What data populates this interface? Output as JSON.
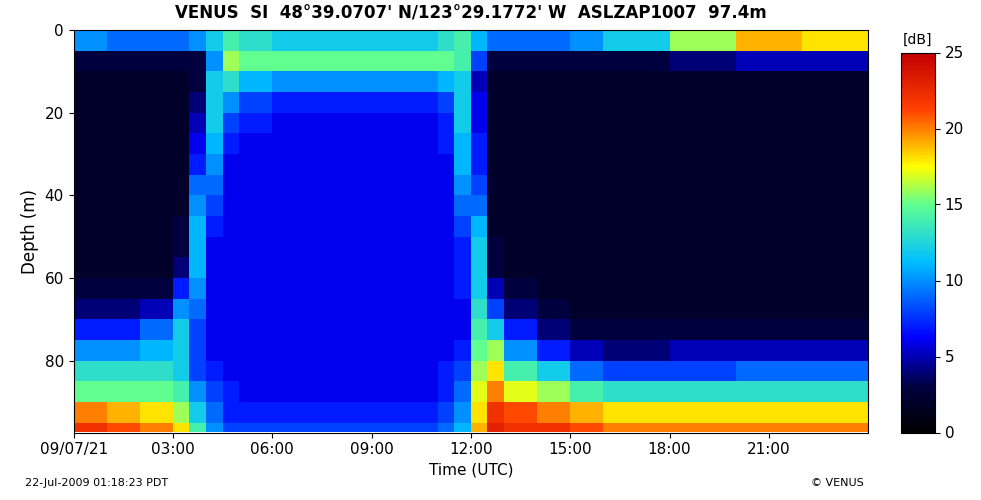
{
  "chart_data": {
    "type": "heatmap",
    "title": "VENUS  SI  48°39.0707' N/123°29.1772' W  ASLZAP1007  97.4m",
    "x_label": "Time (UTC)",
    "y_label": "Depth (m)",
    "annotations": [
      "22-Jul-2009 01:18:23 PDT",
      "© VENUS"
    ],
    "x_edges": [
      0,
      1,
      2,
      3,
      3.5,
      4,
      4.5,
      5,
      6,
      7,
      8,
      9,
      10,
      11,
      11.5,
      12,
      12.5,
      13,
      14,
      15,
      16,
      18,
      20,
      22,
      24
    ],
    "y_edges": [
      0,
      5,
      10,
      15,
      20,
      25,
      30,
      35,
      40,
      45,
      50,
      55,
      60,
      65,
      70,
      75,
      80,
      85,
      90,
      95,
      97.4
    ],
    "cells": [
      [
        10,
        9,
        9,
        9,
        10,
        12,
        14,
        13,
        12,
        12,
        12,
        12,
        12,
        13,
        14,
        11,
        9,
        9,
        9,
        10,
        12,
        16,
        19,
        18
      ],
      [
        3,
        3,
        3,
        3,
        3,
        10,
        16,
        15,
        15,
        15,
        15,
        15,
        15,
        15,
        14,
        8,
        3,
        3,
        3,
        3,
        3,
        4,
        5,
        5
      ],
      [
        2,
        2,
        2,
        2,
        3,
        12,
        13,
        11,
        10,
        10,
        10,
        10,
        10,
        11,
        12,
        5,
        2,
        2,
        2,
        2,
        2,
        2,
        2,
        2
      ],
      [
        2,
        2,
        2,
        2,
        4,
        12,
        10,
        8,
        7,
        7,
        7,
        7,
        7,
        8,
        12,
        6,
        2,
        2,
        2,
        2,
        2,
        2,
        2,
        2
      ],
      [
        2,
        2,
        2,
        2,
        5,
        12,
        8,
        7,
        6,
        6,
        6,
        6,
        6,
        7,
        12,
        6,
        2,
        2,
        2,
        2,
        2,
        2,
        2,
        2
      ],
      [
        2,
        2,
        2,
        2,
        6,
        11,
        7,
        6,
        6,
        6,
        6,
        6,
        6,
        7,
        11,
        7,
        2,
        2,
        2,
        2,
        2,
        2,
        2,
        2
      ],
      [
        2,
        2,
        2,
        2,
        7,
        10,
        6,
        6,
        6,
        6,
        6,
        6,
        6,
        6,
        11,
        7,
        2,
        2,
        2,
        2,
        2,
        2,
        2,
        2
      ],
      [
        2,
        2,
        2,
        2,
        9,
        9,
        6,
        6,
        6,
        6,
        6,
        6,
        6,
        6,
        10,
        8,
        2,
        2,
        2,
        2,
        2,
        2,
        2,
        2
      ],
      [
        2,
        2,
        2,
        2,
        10,
        8,
        6,
        6,
        6,
        6,
        6,
        6,
        6,
        6,
        9,
        9,
        2,
        2,
        2,
        2,
        2,
        2,
        2,
        2
      ],
      [
        2,
        2,
        2,
        3,
        11,
        7,
        6,
        6,
        6,
        6,
        6,
        6,
        6,
        6,
        8,
        11,
        2,
        2,
        2,
        2,
        2,
        2,
        2,
        2
      ],
      [
        2,
        2,
        2,
        3,
        11,
        6,
        6,
        6,
        6,
        6,
        6,
        6,
        6,
        6,
        7,
        12,
        3,
        2,
        2,
        2,
        2,
        2,
        2,
        2
      ],
      [
        2,
        2,
        2,
        4,
        11,
        6,
        6,
        6,
        6,
        6,
        6,
        6,
        6,
        6,
        7,
        12,
        3,
        2,
        2,
        2,
        2,
        2,
        2,
        2
      ],
      [
        3,
        3,
        3,
        7,
        10,
        6,
        6,
        6,
        6,
        6,
        6,
        6,
        6,
        6,
        7,
        12,
        5,
        3,
        2,
        2,
        2,
        2,
        2,
        2
      ],
      [
        4,
        4,
        5,
        10,
        9,
        6,
        6,
        6,
        6,
        6,
        6,
        6,
        6,
        6,
        6,
        13,
        8,
        4,
        3,
        2,
        2,
        2,
        2,
        2
      ],
      [
        7,
        7,
        9,
        12,
        8,
        6,
        6,
        6,
        6,
        6,
        6,
        6,
        6,
        6,
        6,
        14,
        12,
        7,
        4,
        3,
        3,
        3,
        3,
        3
      ],
      [
        10,
        10,
        11,
        12,
        8,
        6,
        6,
        6,
        6,
        6,
        6,
        6,
        6,
        6,
        7,
        15,
        16,
        10,
        7,
        5,
        4,
        5,
        5,
        5
      ],
      [
        13,
        13,
        13,
        12,
        8,
        7,
        6,
        6,
        6,
        6,
        6,
        6,
        6,
        7,
        8,
        16,
        18,
        14,
        12,
        9,
        8,
        8,
        9,
        9
      ],
      [
        15,
        15,
        15,
        14,
        10,
        8,
        7,
        6,
        6,
        6,
        6,
        6,
        6,
        7,
        9,
        17,
        20,
        17,
        16,
        14,
        13,
        13,
        13,
        13
      ],
      [
        20,
        19,
        18,
        16,
        12,
        9,
        7,
        7,
        7,
        7,
        7,
        7,
        7,
        8,
        10,
        18,
        22,
        21,
        20,
        19,
        18,
        18,
        18,
        18
      ],
      [
        22,
        21,
        20,
        18,
        14,
        10,
        8,
        8,
        8,
        8,
        8,
        8,
        8,
        9,
        11,
        19,
        23,
        22,
        22,
        21,
        20,
        20,
        20,
        20
      ]
    ],
    "xlim": [
      0,
      24
    ],
    "xticks": [
      {
        "value": 0,
        "label": "09/07/21"
      },
      {
        "value": 3,
        "label": "03:00"
      },
      {
        "value": 6,
        "label": "06:00"
      },
      {
        "value": 9,
        "label": "09:00"
      },
      {
        "value": 12,
        "label": "12:00"
      },
      {
        "value": 15,
        "label": "15:00"
      },
      {
        "value": 18,
        "label": "18:00"
      },
      {
        "value": 21,
        "label": "21:00"
      }
    ],
    "ylim": [
      97.4,
      0
    ],
    "yticks": [
      0,
      20,
      40,
      60,
      80
    ],
    "colorbar_label": "[dB]",
    "colorbar_range": [
      0,
      25
    ],
    "colorbar_ticks": [
      0,
      5,
      10,
      15,
      20,
      25
    ]
  }
}
